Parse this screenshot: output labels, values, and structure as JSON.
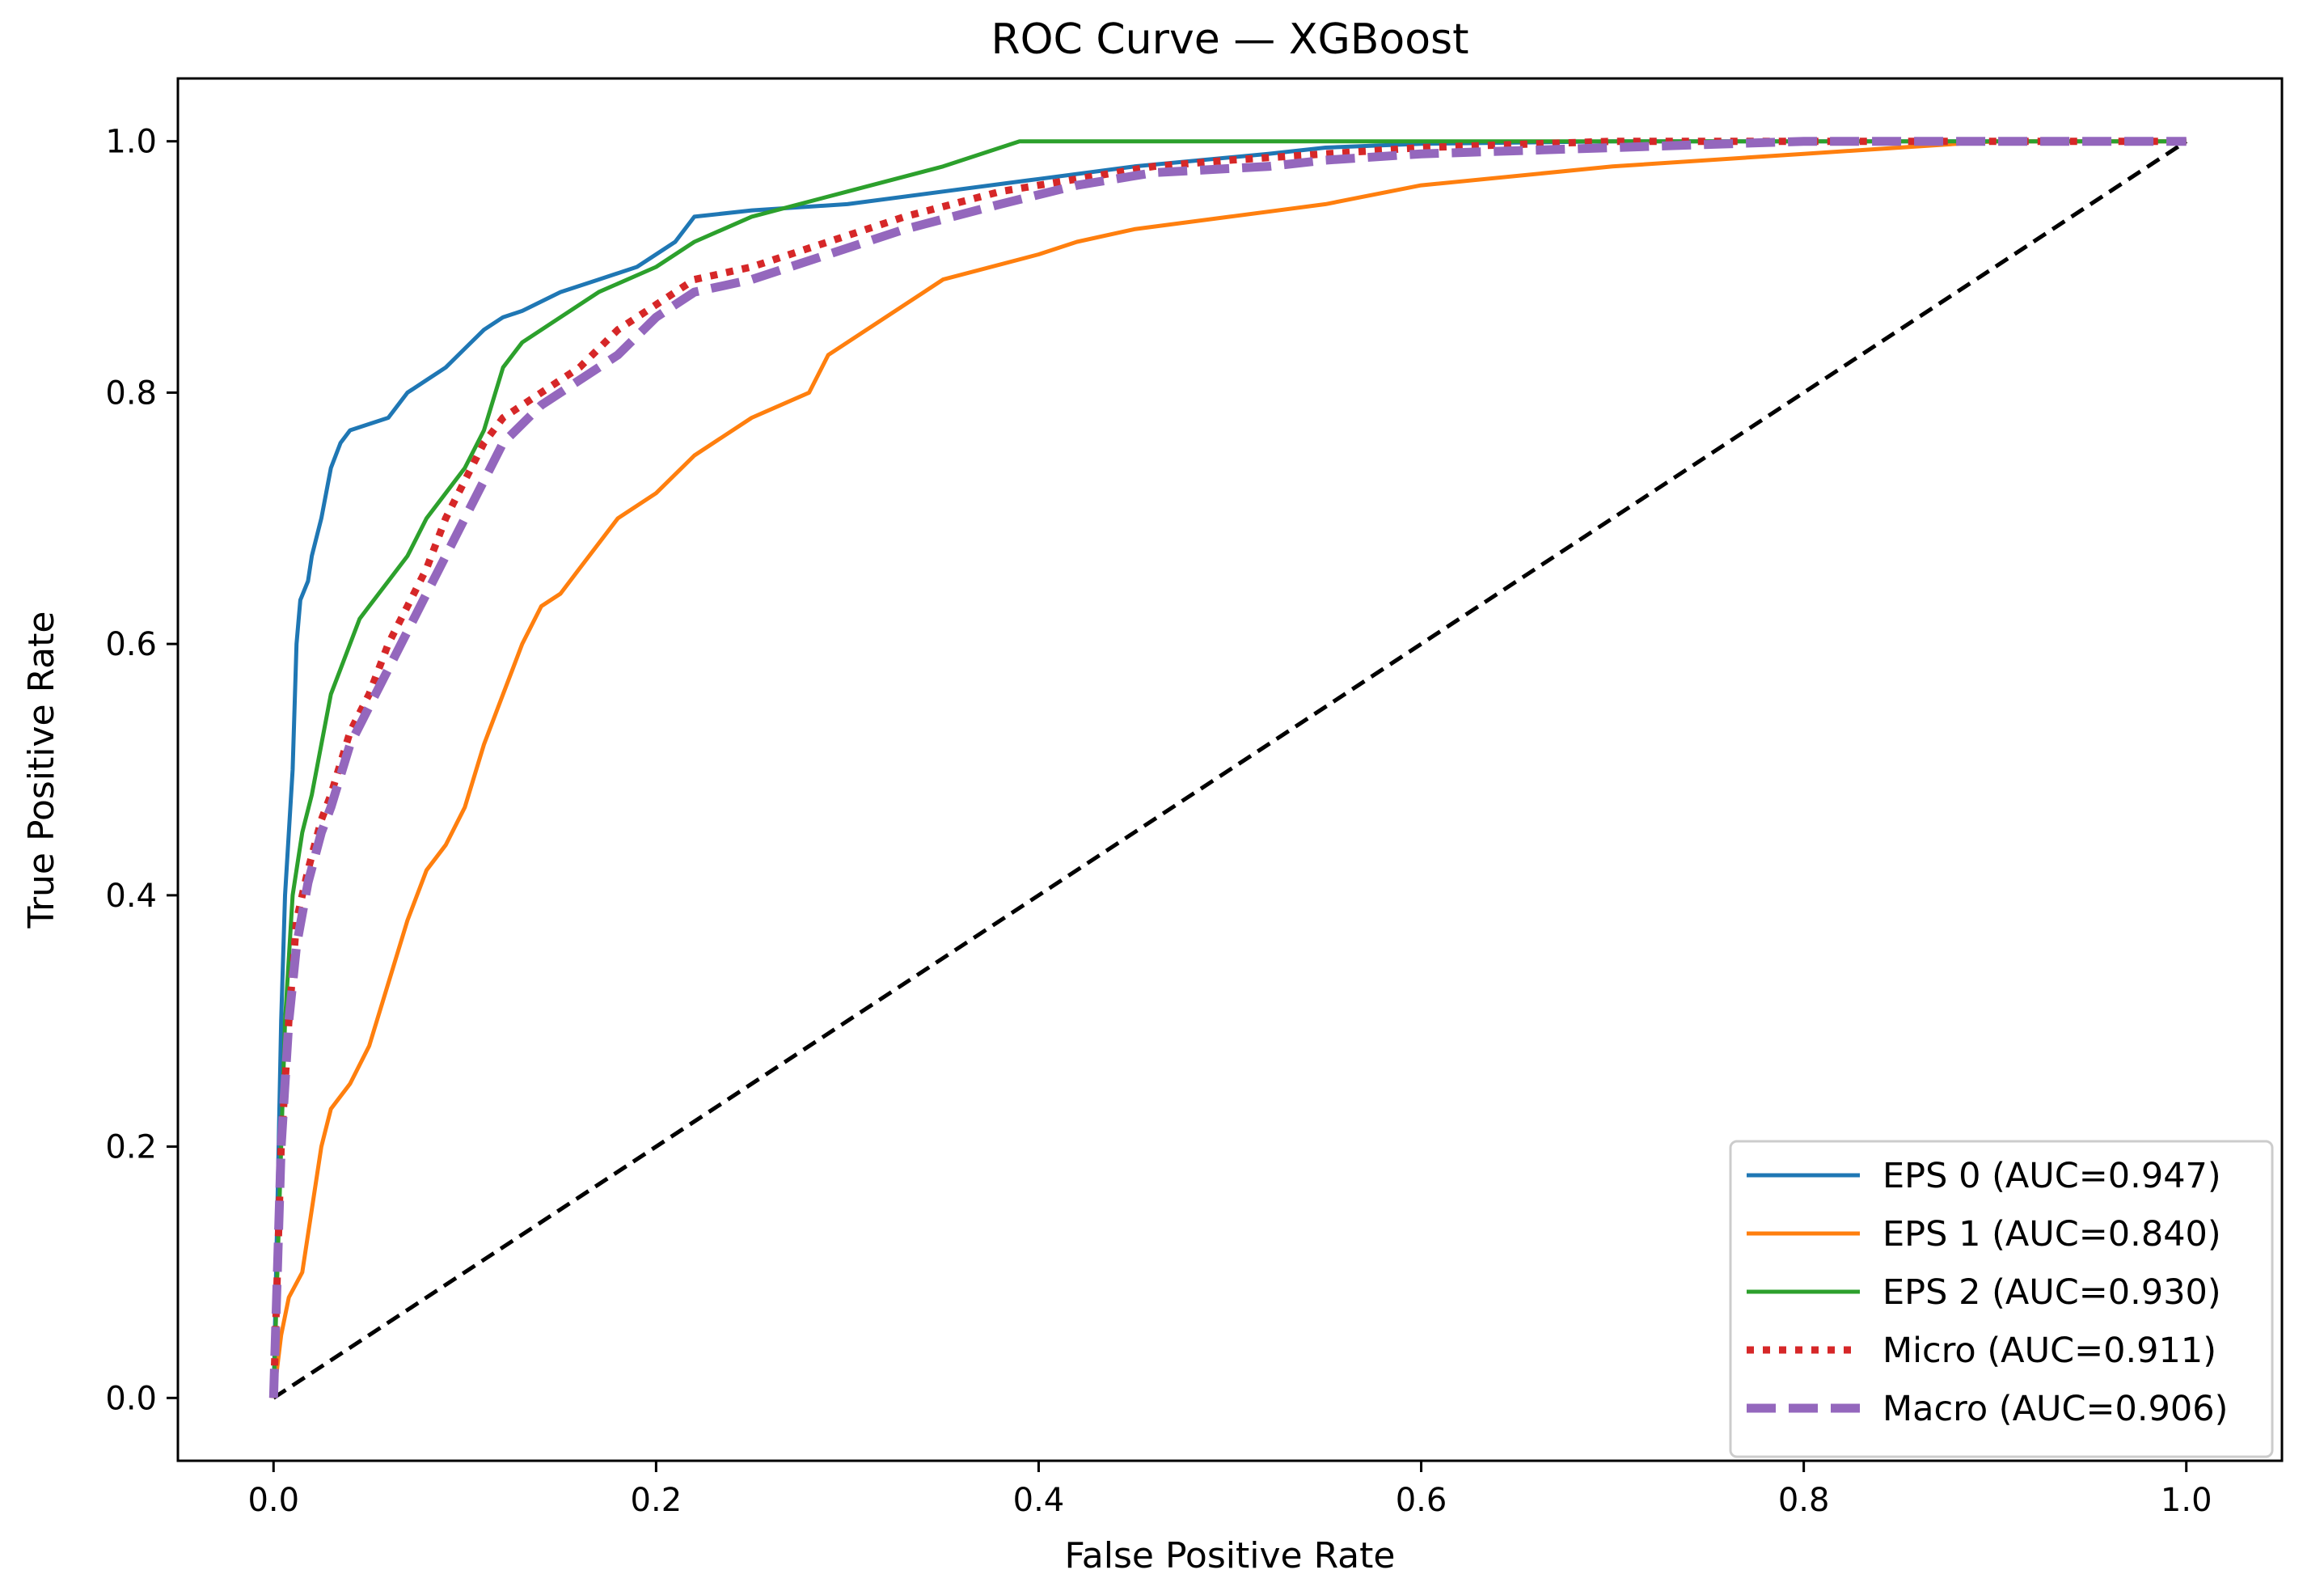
{
  "chart_data": {
    "type": "line",
    "title": "ROC Curve — XGBoost",
    "xlabel": "False Positive Rate",
    "ylabel": "True Positive Rate",
    "xlim": [
      -0.05,
      1.05
    ],
    "ylim": [
      -0.05,
      1.05
    ],
    "grid": false,
    "legend_position": "bottom-right",
    "xticks": [
      0.0,
      0.2,
      0.4,
      0.6,
      0.8,
      1.0
    ],
    "xtick_labels": [
      "0.0",
      "0.2",
      "0.4",
      "0.6",
      "0.8",
      "1.0"
    ],
    "yticks": [
      0.0,
      0.2,
      0.4,
      0.6,
      0.8,
      1.0
    ],
    "ytick_labels": [
      "0.0",
      "0.2",
      "0.4",
      "0.6",
      "0.8",
      "1.0"
    ],
    "series": [
      {
        "name": "EPS 0 (AUC=0.947)",
        "color": "#1f77b4",
        "style": "solid",
        "x": [
          0,
          0.002,
          0.004,
          0.006,
          0.01,
          0.012,
          0.014,
          0.018,
          0.02,
          0.025,
          0.03,
          0.035,
          0.04,
          0.05,
          0.06,
          0.07,
          0.08,
          0.09,
          0.1,
          0.11,
          0.12,
          0.13,
          0.15,
          0.17,
          0.19,
          0.21,
          0.22,
          0.25,
          0.3,
          0.35,
          0.4,
          0.45,
          0.52,
          0.55,
          0.6,
          0.7,
          0.8,
          1.0
        ],
        "y": [
          0,
          0.15,
          0.3,
          0.4,
          0.5,
          0.6,
          0.635,
          0.65,
          0.67,
          0.7,
          0.74,
          0.76,
          0.77,
          0.775,
          0.78,
          0.8,
          0.81,
          0.82,
          0.835,
          0.85,
          0.86,
          0.865,
          0.88,
          0.89,
          0.9,
          0.92,
          0.94,
          0.945,
          0.95,
          0.96,
          0.97,
          0.98,
          0.99,
          0.995,
          0.998,
          1.0,
          1.0,
          1.0
        ]
      },
      {
        "name": "EPS 1 (AUC=0.840)",
        "color": "#ff7f0e",
        "style": "solid",
        "x": [
          0,
          0.004,
          0.008,
          0.015,
          0.02,
          0.025,
          0.03,
          0.04,
          0.05,
          0.06,
          0.07,
          0.08,
          0.09,
          0.1,
          0.11,
          0.12,
          0.125,
          0.13,
          0.14,
          0.15,
          0.16,
          0.18,
          0.2,
          0.22,
          0.25,
          0.28,
          0.29,
          0.3,
          0.33,
          0.35,
          0.4,
          0.42,
          0.45,
          0.5,
          0.55,
          0.6,
          0.7,
          0.8,
          0.9,
          1.0
        ],
        "y": [
          0,
          0.05,
          0.08,
          0.1,
          0.15,
          0.2,
          0.23,
          0.25,
          0.28,
          0.33,
          0.38,
          0.42,
          0.44,
          0.47,
          0.52,
          0.56,
          0.58,
          0.6,
          0.63,
          0.64,
          0.66,
          0.7,
          0.72,
          0.75,
          0.78,
          0.8,
          0.83,
          0.84,
          0.87,
          0.89,
          0.91,
          0.92,
          0.93,
          0.94,
          0.95,
          0.965,
          0.98,
          0.99,
          1.0,
          1.0
        ]
      },
      {
        "name": "EPS 2 (AUC=0.930)",
        "color": "#2ca02c",
        "style": "solid",
        "x": [
          0,
          0.002,
          0.004,
          0.006,
          0.01,
          0.015,
          0.02,
          0.025,
          0.03,
          0.035,
          0.04,
          0.045,
          0.05,
          0.06,
          0.07,
          0.08,
          0.09,
          0.1,
          0.11,
          0.12,
          0.13,
          0.15,
          0.17,
          0.2,
          0.22,
          0.25,
          0.3,
          0.35,
          0.39,
          0.45,
          0.5,
          0.6,
          0.7,
          1.0
        ],
        "y": [
          0,
          0.1,
          0.2,
          0.3,
          0.4,
          0.45,
          0.48,
          0.52,
          0.56,
          0.58,
          0.6,
          0.62,
          0.63,
          0.65,
          0.67,
          0.7,
          0.72,
          0.74,
          0.77,
          0.82,
          0.84,
          0.86,
          0.88,
          0.9,
          0.92,
          0.94,
          0.96,
          0.98,
          1.0,
          1.0,
          1.0,
          1.0,
          1.0,
          1.0
        ]
      },
      {
        "name": "Micro (AUC=0.911)",
        "color": "#d62728",
        "style": "dotted",
        "x": [
          0,
          0.002,
          0.004,
          0.008,
          0.012,
          0.018,
          0.025,
          0.03,
          0.04,
          0.05,
          0.06,
          0.07,
          0.08,
          0.09,
          0.1,
          0.11,
          0.12,
          0.14,
          0.16,
          0.18,
          0.2,
          0.22,
          0.25,
          0.29,
          0.33,
          0.38,
          0.42,
          0.46,
          0.5,
          0.55,
          0.6,
          0.7,
          0.8,
          1.0
        ],
        "y": [
          0,
          0.1,
          0.2,
          0.3,
          0.38,
          0.42,
          0.46,
          0.48,
          0.53,
          0.56,
          0.6,
          0.63,
          0.66,
          0.7,
          0.73,
          0.76,
          0.78,
          0.8,
          0.82,
          0.85,
          0.87,
          0.89,
          0.9,
          0.92,
          0.94,
          0.96,
          0.97,
          0.98,
          0.985,
          0.99,
          0.995,
          1.0,
          1.0,
          1.0
        ]
      },
      {
        "name": "Macro (AUC=0.906)",
        "color": "#9467bd",
        "style": "dashed",
        "x": [
          0,
          0.002,
          0.004,
          0.008,
          0.012,
          0.018,
          0.025,
          0.03,
          0.04,
          0.05,
          0.06,
          0.07,
          0.08,
          0.09,
          0.1,
          0.11,
          0.12,
          0.14,
          0.16,
          0.18,
          0.2,
          0.22,
          0.25,
          0.29,
          0.33,
          0.38,
          0.42,
          0.46,
          0.52,
          0.55,
          0.6,
          0.7,
          0.8,
          1.0
        ],
        "y": [
          0,
          0.1,
          0.2,
          0.3,
          0.36,
          0.41,
          0.45,
          0.47,
          0.52,
          0.55,
          0.58,
          0.61,
          0.64,
          0.67,
          0.7,
          0.73,
          0.76,
          0.79,
          0.81,
          0.83,
          0.86,
          0.88,
          0.89,
          0.91,
          0.93,
          0.95,
          0.965,
          0.975,
          0.98,
          0.985,
          0.99,
          0.995,
          1.0,
          1.0
        ]
      },
      {
        "name": "Chance",
        "color": "#000000",
        "style": "dashed",
        "legend": false,
        "x": [
          0,
          1
        ],
        "y": [
          0,
          1
        ]
      }
    ]
  }
}
